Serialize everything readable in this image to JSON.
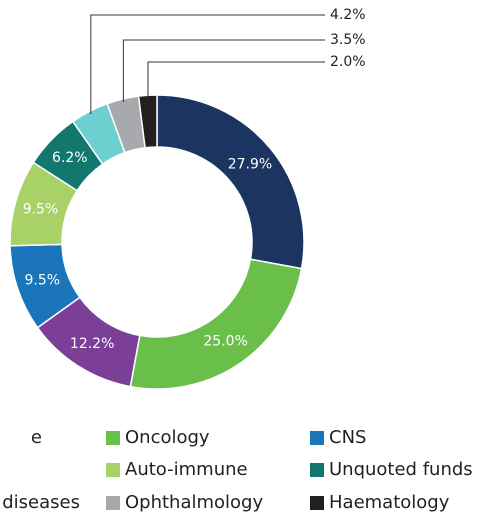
{
  "chart_data": {
    "type": "donut",
    "categories": [
      "e",
      null,
      "Oncology",
      "CNS",
      "Auto-immune",
      "Unquoted funds",
      "diseases",
      "Ophthalmology",
      "Haematology"
    ],
    "slices": [
      {
        "name": "e",
        "color": "#1b3461",
        "value": 27.9,
        "value_label": "27.9%"
      },
      {
        "name": "Oncology",
        "color": "#6abf4b",
        "value": 25.0,
        "value_label": "25.0%"
      },
      {
        "name": null,
        "color": "#7b3f98",
        "value": 12.2,
        "value_label": "12.2%"
      },
      {
        "name": "CNS",
        "color": "#1a75bb",
        "value": 9.5,
        "value_label": "9.5%"
      },
      {
        "name": "Auto-immune",
        "color": "#a8d168",
        "value": 9.5,
        "value_label": "9.5%"
      },
      {
        "name": "Unquoted funds",
        "color": "#12786e",
        "value": 6.2,
        "value_label": "6.2%"
      },
      {
        "name": "diseases",
        "color": "#6ccfd0",
        "value": 4.2,
        "value_label": "4.2%"
      },
      {
        "name": "Ophthalmology",
        "color": "#a7a9ac",
        "value": 3.5,
        "value_label": "3.5%"
      },
      {
        "name": "Haematology",
        "color": "#231f20",
        "value": 2.0,
        "value_label": "2.0%"
      }
    ]
  }
}
